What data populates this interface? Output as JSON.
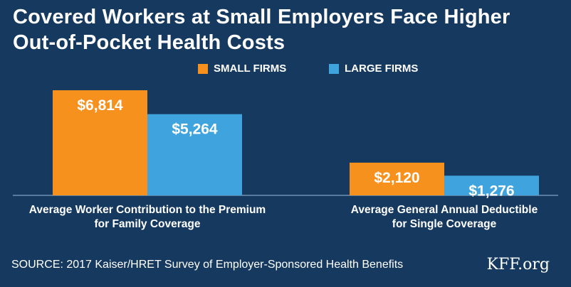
{
  "title_lines": [
    "Covered Workers at Small Employers Face Higher",
    "Out-of-Pocket Health Costs"
  ],
  "colors": {
    "background": "#163a5f",
    "small_firms": "#f7911e",
    "large_firms": "#3fa4dd",
    "text": "#ffffff"
  },
  "chart_data": {
    "type": "bar",
    "categories": [
      [
        "Average Worker Contribution to the Premium",
        "for Family Coverage"
      ],
      [
        "Average General Annual Deductible",
        "for Single  Coverage"
      ]
    ],
    "series": [
      {
        "name": "SMALL FIRMS",
        "values": [
          6814,
          2120
        ],
        "labels": [
          "$6,814",
          "$2,120"
        ]
      },
      {
        "name": "LARGE FIRMS",
        "values": [
          5264,
          1276
        ],
        "labels": [
          "$5,264",
          "$1,276"
        ]
      }
    ],
    "ylim": [
      0,
      7000
    ],
    "grid": false,
    "legend_position": "top"
  },
  "footer": {
    "source": "SOURCE: 2017 Kaiser/HRET Survey of Employer-Sponsored Health Benefits",
    "brand": "KFF.org"
  }
}
